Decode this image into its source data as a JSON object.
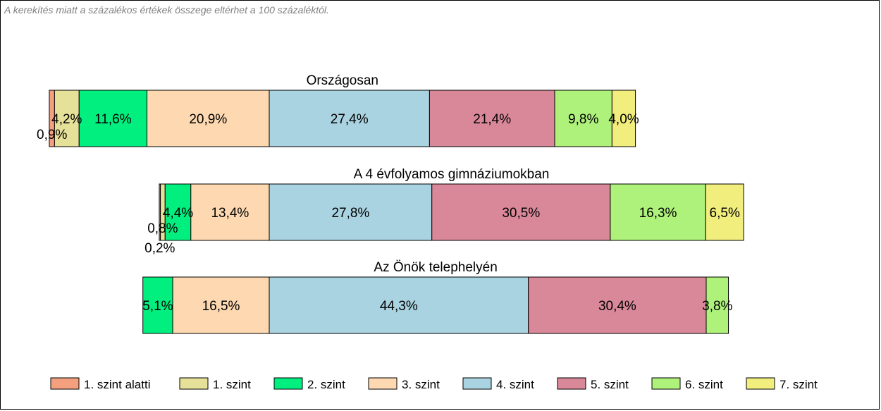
{
  "note": "A kerekítés miatt a  százalékos értékek összege eltérhet a 100 százaléktól.",
  "colors": {
    "szint_alatti": "#f4a07e",
    "szint1": "#e6e199",
    "szint2": "#00ef7f",
    "szint3": "#fdd8b1",
    "szint4": "#aad3e1",
    "szint5": "#d98899",
    "szint6": "#aef27b",
    "szint7": "#f1ee7d"
  },
  "chart_data": {
    "type": "bar",
    "orientation": "horizontal",
    "stacked": true,
    "categories": [
      "1. szint alatti",
      "1. szint",
      "2. szint",
      "3. szint",
      "4. szint",
      "5. szint",
      "6. szint",
      "7. szint"
    ],
    "bars": [
      {
        "title": "Országosan",
        "values": [
          0.9,
          4.2,
          11.6,
          20.9,
          27.4,
          21.4,
          9.8,
          4.0
        ],
        "labels": [
          "0,9%",
          "4,2%",
          "11,6%",
          "20,9%",
          "27,4%",
          "21,4%",
          "9,8%",
          "4,0%"
        ]
      },
      {
        "title": "A 4 évfolyamos gimnáziumokban",
        "values": [
          0.2,
          0.8,
          4.4,
          13.4,
          27.8,
          30.5,
          16.3,
          6.5
        ],
        "labels": [
          "0,2%",
          "0,8%",
          "4,4%",
          "13,4%",
          "27,8%",
          "30,5%",
          "16,3%",
          "6,5%"
        ]
      },
      {
        "title": "Az Önök telephelyén",
        "values": [
          0,
          0,
          5.1,
          16.5,
          44.3,
          30.4,
          3.8,
          0
        ],
        "labels": [
          "",
          "",
          "5,1%",
          "16,5%",
          "44,3%",
          "30,4%",
          "3,8%",
          ""
        ]
      }
    ],
    "legend": {
      "position": "bottom",
      "entries": [
        "1. szint alatti",
        "1. szint",
        "2. szint",
        "3. szint",
        "4. szint",
        "5. szint",
        "6. szint",
        "7. szint"
      ]
    },
    "grid": false
  }
}
